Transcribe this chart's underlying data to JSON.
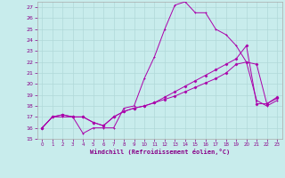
{
  "xlabel": "Windchill (Refroidissement éolien,°C)",
  "bg_color": "#c8ecec",
  "grid_color": "#b0d8d8",
  "line_color": "#aa00aa",
  "xlim": [
    -0.5,
    23.5
  ],
  "ylim": [
    15,
    27.5
  ],
  "yticks": [
    15,
    16,
    17,
    18,
    19,
    20,
    21,
    22,
    23,
    24,
    25,
    26,
    27
  ],
  "xticks": [
    0,
    1,
    2,
    3,
    4,
    5,
    6,
    7,
    8,
    9,
    10,
    11,
    12,
    13,
    14,
    15,
    16,
    17,
    18,
    19,
    20,
    21,
    22,
    23
  ],
  "line1_x": [
    0,
    1,
    2,
    3,
    4,
    5,
    6,
    7,
    8,
    9,
    10,
    11,
    12,
    13,
    14,
    15,
    16,
    17,
    18,
    19,
    20,
    21,
    22,
    23
  ],
  "line1_y": [
    16.0,
    17.0,
    17.0,
    17.0,
    15.5,
    16.0,
    16.0,
    16.0,
    17.8,
    18.0,
    20.5,
    22.5,
    25.0,
    27.2,
    27.5,
    26.5,
    26.5,
    25.0,
    24.5,
    23.5,
    22.0,
    18.5,
    18.0,
    18.5
  ],
  "line2_x": [
    0,
    1,
    2,
    3,
    4,
    5,
    6,
    7,
    8,
    9,
    10,
    11,
    12,
    13,
    14,
    15,
    16,
    17,
    18,
    19,
    20,
    21,
    22,
    23
  ],
  "line2_y": [
    16.0,
    17.0,
    17.2,
    17.0,
    17.0,
    16.5,
    16.2,
    17.0,
    17.5,
    17.8,
    18.0,
    18.3,
    18.6,
    18.9,
    19.3,
    19.7,
    20.1,
    20.5,
    21.0,
    21.8,
    22.0,
    21.8,
    18.2,
    18.7
  ],
  "line3_x": [
    0,
    1,
    2,
    3,
    4,
    5,
    6,
    7,
    8,
    9,
    10,
    11,
    12,
    13,
    14,
    15,
    16,
    17,
    18,
    19,
    20,
    21,
    22,
    23
  ],
  "line3_y": [
    16.0,
    17.0,
    17.2,
    17.0,
    17.0,
    16.5,
    16.2,
    17.0,
    17.5,
    17.8,
    18.0,
    18.3,
    18.8,
    19.3,
    19.8,
    20.3,
    20.8,
    21.3,
    21.8,
    22.3,
    23.5,
    18.2,
    18.2,
    18.8
  ]
}
